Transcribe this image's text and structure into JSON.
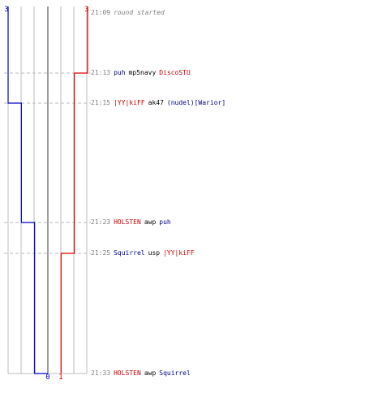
{
  "colors": {
    "red": "#dd0000",
    "blue": "#0000cc",
    "grid": "#bbbbbb",
    "dashed": "#bbbbbb",
    "zero": "#666666"
  },
  "score_labels": {
    "blue_start": "3",
    "red_start": "3",
    "blue_end": "0",
    "red_end": "1"
  },
  "events": [
    {
      "time": "21:09",
      "parts": [
        {
          "text": "round started",
          "cls": "time italic"
        }
      ]
    },
    {
      "time": "21:13",
      "parts": [
        {
          "text": "puh",
          "cls": "blue"
        },
        {
          "text": "mp5navy",
          "cls": "plain"
        },
        {
          "text": "DiscoSTU",
          "cls": "red"
        }
      ]
    },
    {
      "time": "21:15",
      "parts": [
        {
          "text": "|YY|kiFF",
          "cls": "red"
        },
        {
          "text": "ak47",
          "cls": "plain"
        },
        {
          "text": "(nudel)[Warior]",
          "cls": "blue"
        }
      ]
    },
    {
      "time": "21:23",
      "parts": [
        {
          "text": "HOLSTEN",
          "cls": "red"
        },
        {
          "text": "awp",
          "cls": "plain"
        },
        {
          "text": "puh",
          "cls": "blue"
        }
      ]
    },
    {
      "time": "21:25",
      "parts": [
        {
          "text": "Squirrel",
          "cls": "blue"
        },
        {
          "text": "usp",
          "cls": "plain"
        },
        {
          "text": "|YY|kiFF",
          "cls": "red"
        }
      ]
    },
    {
      "time": "21:33",
      "parts": [
        {
          "text": "HOLSTEN",
          "cls": "red"
        },
        {
          "text": "awp",
          "cls": "plain"
        },
        {
          "text": "Squirrel",
          "cls": "blue"
        }
      ]
    }
  ],
  "chart_data": {
    "type": "line",
    "x": [
      "21:09",
      "21:13",
      "21:15",
      "21:23",
      "21:25",
      "21:33"
    ],
    "series": [
      {
        "values": [
          3,
          3,
          2,
          1,
          1,
          0
        ]
      },
      {
        "values": [
          3,
          2,
          2,
          2,
          1,
          1
        ]
      }
    ],
    "ylim": [
      0,
      3
    ]
  }
}
